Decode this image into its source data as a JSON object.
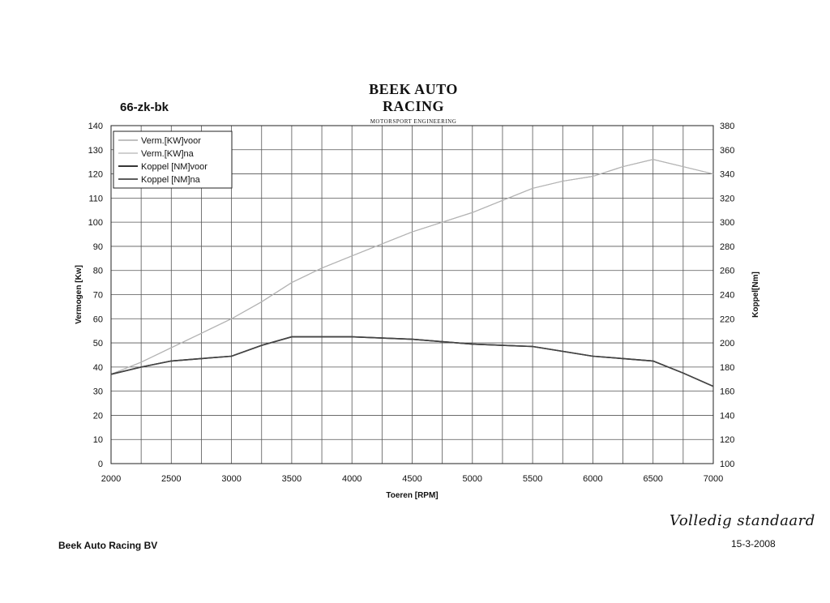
{
  "header": {
    "logo_text": "BEEK AUTO RACING",
    "logo_subtitle": "MOTORSPORT ENGINEERING",
    "plate": "66-zk-bk"
  },
  "footer": {
    "company": "Beek Auto Racing BV",
    "date": "15-3-2008",
    "handwritten_note": "Volledig standaard"
  },
  "chart_data": {
    "type": "line",
    "title": "66-zk-bk",
    "xlabel": "Toeren [RPM]",
    "ylabel": "Vermogen [Kw]",
    "y2label": "Koppel[Nm]",
    "xlim": [
      2000,
      7000
    ],
    "ylim": [
      0,
      140
    ],
    "y2lim": [
      100,
      380
    ],
    "grid": true,
    "legend_position": "top-left",
    "x_ticks": [
      2000,
      2500,
      3000,
      3500,
      4000,
      4500,
      5000,
      5500,
      6000,
      6500,
      7000
    ],
    "y_ticks": [
      0,
      10,
      20,
      30,
      40,
      50,
      60,
      70,
      80,
      90,
      100,
      110,
      120,
      130,
      140
    ],
    "y2_ticks": [
      100,
      120,
      140,
      160,
      180,
      200,
      220,
      240,
      260,
      280,
      300,
      320,
      340,
      360,
      380
    ],
    "series": [
      {
        "name": "Verm.[KW]voor",
        "axis": "left",
        "color": "#9a9a9a",
        "x": [
          2000,
          2250,
          2500,
          2750,
          3000,
          3250,
          3500,
          3750,
          4000,
          4250,
          4500,
          4750,
          5000,
          5250,
          5500,
          5750,
          6000,
          6250,
          6500,
          6750,
          7000
        ],
        "y": [
          37,
          42,
          48,
          54,
          60,
          67,
          75,
          81,
          86,
          91,
          96,
          100,
          104,
          109,
          114,
          117,
          119,
          123,
          126,
          123,
          120
        ]
      },
      {
        "name": "Verm.[KW]na",
        "axis": "left",
        "color": "#b4b4b4",
        "x": [
          2000,
          2250,
          2500,
          2750,
          3000,
          3250,
          3500,
          3750,
          4000,
          4250,
          4500,
          4750,
          5000,
          5250,
          5500,
          5750,
          6000,
          6250,
          6500,
          6750,
          7000
        ],
        "y": [
          37,
          42,
          48,
          54,
          60,
          67,
          75,
          81,
          86,
          91,
          96,
          100,
          104,
          109,
          114,
          117,
          119,
          123,
          126,
          123,
          120
        ]
      },
      {
        "name": "Koppel [NM]voor",
        "axis": "right",
        "color": "#1a1a1a",
        "x": [
          2000,
          2250,
          2500,
          2750,
          3000,
          3250,
          3500,
          3750,
          4000,
          4250,
          4500,
          4750,
          5000,
          5250,
          5500,
          5750,
          6000,
          6250,
          6500,
          6750,
          7000
        ],
        "y": [
          174,
          180,
          185,
          187,
          189,
          198,
          205,
          205,
          205,
          204,
          203,
          201,
          199,
          198,
          197,
          193,
          189,
          187,
          185,
          175,
          164
        ]
      },
      {
        "name": "Koppel [NM]na",
        "axis": "right",
        "color": "#444444",
        "x": [
          2000,
          2250,
          2500,
          2750,
          3000,
          3250,
          3500,
          3750,
          4000,
          4250,
          4500,
          4750,
          5000,
          5250,
          5500,
          5750,
          6000,
          6250,
          6500,
          6750,
          7000
        ],
        "y": [
          174,
          180,
          185,
          187,
          189,
          198,
          205,
          205,
          205,
          204,
          203,
          201,
          199,
          198,
          197,
          193,
          189,
          187,
          185,
          175,
          164
        ]
      }
    ]
  }
}
